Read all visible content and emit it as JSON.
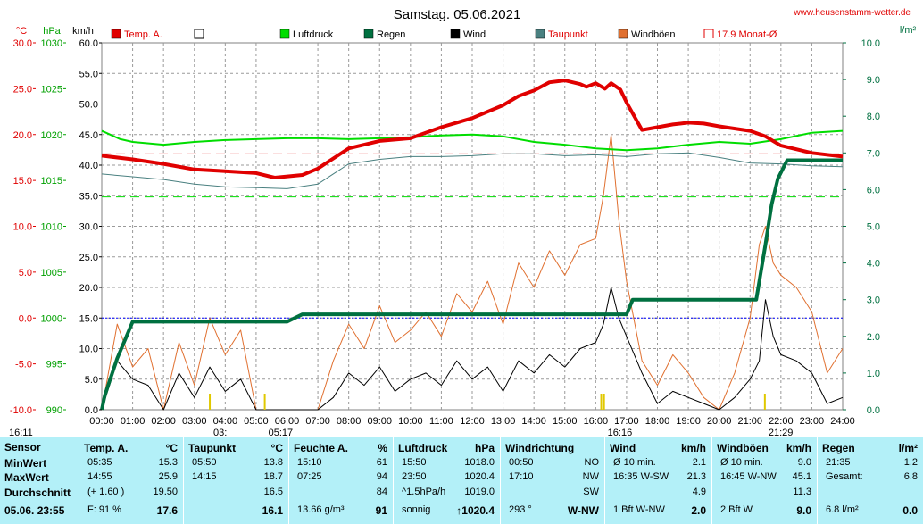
{
  "header": {
    "title": "Samstag. 05.06.2021",
    "site": "www.heusenstamm-wetter.de",
    "unit_c": "°C",
    "unit_hpa": "hPa",
    "unit_kmh": "km/h",
    "unit_lm2": "l/m²"
  },
  "legend": [
    {
      "label": "Temp. A.",
      "color": "#e00000",
      "kind": "box"
    },
    {
      "label": "",
      "color": "#ffffff",
      "kind": "outline"
    },
    {
      "label": "Luftdruck",
      "color": "#00dd00",
      "kind": "box"
    },
    {
      "label": "Regen",
      "color": "#007040",
      "kind": "box"
    },
    {
      "label": "Wind",
      "color": "#000000",
      "kind": "box"
    },
    {
      "label": "Taupunkt",
      "color": "#4a8080",
      "kind": "box"
    },
    {
      "label": "Windböen",
      "color": "#e07030",
      "kind": "box"
    },
    {
      "label": "17.9 Monat-Ø",
      "color": "#e00000",
      "kind": "bracket"
    }
  ],
  "chart_data": {
    "type": "line",
    "title": "Samstag. 05.06.2021",
    "x_ticks": [
      "00:00",
      "01:00",
      "02:00",
      "03:00",
      "04:00",
      "05:00",
      "06:00",
      "07:00",
      "08:00",
      "09:00",
      "10:00",
      "11:00",
      "12:00",
      "13:00",
      "14:00",
      "15:00",
      "16:00",
      "17:00",
      "18:00",
      "19:00",
      "20:00",
      "21:00",
      "22:00",
      "23:00",
      "24:00"
    ],
    "axes": {
      "temp_c": {
        "ticks": [
          "30.0",
          "25.0",
          "20.0",
          "15.0",
          "10.0",
          "5.0",
          "0.0",
          "-5.0",
          "-10.0"
        ],
        "range": [
          -10,
          30
        ],
        "color": "#e00000"
      },
      "pressure_hpa": {
        "ticks": [
          "1030",
          "1025",
          "1020",
          "1015",
          "1010",
          "1005",
          "1000",
          "995",
          "990"
        ],
        "range": [
          990,
          1030
        ],
        "color": "#00a000"
      },
      "wind_kmh": {
        "ticks": [
          "60.0",
          "55.0",
          "50.0",
          "45.0",
          "40.0",
          "35.0",
          "30.0",
          "25.0",
          "20.0",
          "15.0",
          "10.0",
          "5.0",
          "0.0"
        ],
        "range": [
          0,
          60
        ],
        "color": "#000000"
      },
      "rain_lm2": {
        "ticks": [
          "10.0",
          "9.0",
          "8.0",
          "7.0",
          "6.0",
          "5.0",
          "4.0",
          "3.0",
          "2.0",
          "1.0",
          "0.0"
        ],
        "range": [
          0,
          10
        ],
        "color": "#007040"
      }
    },
    "reference_lines": [
      {
        "name": "17.9 Monat-Ø",
        "axis": "temp_c",
        "value": 17.9,
        "color": "#e00000",
        "style": "dashed"
      },
      {
        "name": "pressure-reference",
        "axis": "pressure_hpa",
        "value": 1013.2,
        "color": "#00dd00",
        "style": "dashed"
      },
      {
        "name": "zero-line",
        "axis": "temp_c",
        "value": 0,
        "color": "#0000ff",
        "style": "dotted"
      }
    ],
    "markers": [
      {
        "label": "16:11",
        "time": 16.18
      },
      {
        "label": "05:17",
        "time": 5.28
      },
      {
        "label": "03:",
        "time": 3.5
      },
      {
        "label": "16:16",
        "time": 16.27
      },
      {
        "label": "21:29",
        "time": 21.48
      }
    ],
    "series": [
      {
        "name": "Temp. A.",
        "axis": "temp_c",
        "color": "#e00000",
        "width": 4,
        "x": [
          0,
          1,
          2,
          3,
          4,
          5,
          5.6,
          6.5,
          7,
          8,
          9,
          10,
          11,
          12,
          13,
          13.5,
          14,
          14.5,
          15,
          15.5,
          15.7,
          16,
          16.3,
          16.5,
          16.8,
          17,
          17.5,
          18,
          18.5,
          19,
          19.5,
          20,
          21,
          21.5,
          22,
          23,
          24
        ],
        "y": [
          17.7,
          17.3,
          16.8,
          16.2,
          16.0,
          15.8,
          15.3,
          15.6,
          16.3,
          18.5,
          19.3,
          19.6,
          20.8,
          21.8,
          23.2,
          24.2,
          24.8,
          25.7,
          25.9,
          25.5,
          25.2,
          25.6,
          25.0,
          25.6,
          24.9,
          23.5,
          20.5,
          20.8,
          21.1,
          21.3,
          21.2,
          20.9,
          20.4,
          19.8,
          18.8,
          18.0,
          17.6
        ]
      },
      {
        "name": "Luftdruck",
        "axis": "pressure_hpa",
        "color": "#00dd00",
        "width": 2,
        "x": [
          0,
          0.6,
          1,
          2,
          3,
          4,
          5,
          6,
          7,
          8,
          9,
          10,
          11,
          12,
          13,
          14,
          15,
          16,
          17,
          18,
          19,
          20,
          21,
          22,
          23,
          24
        ],
        "y": [
          1020.4,
          1019.5,
          1019.2,
          1018.9,
          1019.2,
          1019.4,
          1019.5,
          1019.6,
          1019.6,
          1019.5,
          1019.6,
          1019.7,
          1019.9,
          1020.0,
          1019.8,
          1019.2,
          1018.9,
          1018.5,
          1018.3,
          1018.5,
          1018.9,
          1019.2,
          1019.0,
          1019.5,
          1020.2,
          1020.4
        ]
      },
      {
        "name": "Regen",
        "axis": "rain_lm2",
        "color": "#007040",
        "width": 4,
        "x": [
          0,
          0.1,
          0.3,
          0.5,
          0.8,
          1.0,
          1.2,
          6.0,
          6.5,
          17.0,
          17.2,
          21.2,
          21.5,
          21.7,
          21.9,
          22.2,
          24
        ],
        "y": [
          0,
          0.4,
          0.9,
          1.4,
          2.0,
          2.4,
          2.4,
          2.4,
          2.6,
          2.6,
          3.0,
          3.0,
          4.5,
          5.6,
          6.3,
          6.8,
          6.8
        ]
      },
      {
        "name": "Taupunkt",
        "axis": "temp_c",
        "color": "#4a8080",
        "width": 1,
        "x": [
          0,
          1,
          2,
          3,
          4,
          5,
          6,
          7,
          8,
          9,
          10,
          11,
          12,
          13,
          14,
          15,
          16,
          17,
          18,
          19,
          20,
          21,
          22,
          23,
          24
        ],
        "y": [
          15.7,
          15.4,
          15.1,
          14.6,
          14.3,
          14.2,
          14.1,
          14.6,
          16.8,
          17.3,
          17.6,
          17.6,
          17.7,
          17.9,
          17.9,
          17.7,
          17.8,
          17.6,
          17.9,
          18.0,
          17.5,
          16.9,
          16.8,
          16.6,
          16.5
        ]
      },
      {
        "name": "Wind",
        "axis": "wind_kmh",
        "color": "#000000",
        "width": 1,
        "x": [
          0,
          0.5,
          1,
          1.5,
          2,
          2.5,
          3,
          3.5,
          4,
          4.5,
          5,
          5.5,
          6,
          6.5,
          7,
          7.5,
          8,
          8.5,
          9,
          9.5,
          10,
          10.5,
          11,
          11.5,
          12,
          12.5,
          13,
          13.5,
          14,
          14.5,
          15,
          15.5,
          16,
          16.25,
          16.5,
          16.75,
          17,
          17.5,
          18,
          18.5,
          19,
          19.5,
          20,
          20.5,
          21,
          21.3,
          21.5,
          21.75,
          22,
          22.5,
          23,
          23.5,
          24
        ],
        "y": [
          0,
          8,
          5,
          4,
          0,
          6,
          2,
          7,
          3,
          5,
          0,
          0,
          0,
          0,
          0,
          2,
          6,
          4,
          7,
          3,
          5,
          6,
          4,
          8,
          5,
          7,
          3,
          8,
          6,
          9,
          7,
          10,
          11,
          14,
          20,
          15,
          12,
          6,
          1,
          3,
          2,
          1,
          0,
          2,
          5,
          8,
          18,
          12,
          9,
          8,
          6,
          1,
          2
        ]
      },
      {
        "name": "Windböen",
        "axis": "wind_kmh",
        "color": "#e07030",
        "width": 1,
        "x": [
          0,
          0.5,
          1,
          1.5,
          2,
          2.5,
          3,
          3.5,
          4,
          4.5,
          5,
          5.5,
          6,
          6.5,
          7,
          7.5,
          8,
          8.5,
          9,
          9.5,
          10,
          10.5,
          11,
          11.5,
          12,
          12.5,
          13,
          13.5,
          14,
          14.5,
          15,
          15.5,
          16,
          16.25,
          16.5,
          16.75,
          17,
          17.5,
          18,
          18.5,
          19,
          19.5,
          20,
          20.5,
          21,
          21.3,
          21.5,
          21.75,
          22,
          22.5,
          23,
          23.5,
          24
        ],
        "y": [
          0,
          14,
          7,
          10,
          0,
          11,
          4,
          15,
          9,
          13,
          0,
          0,
          0,
          0,
          0,
          8,
          14,
          10,
          17,
          11,
          13,
          16,
          12,
          19,
          16,
          21,
          14,
          24,
          20,
          26,
          22,
          27,
          28,
          35,
          45,
          31,
          21,
          8,
          4,
          9,
          6,
          2,
          0,
          6,
          15,
          27,
          30,
          24,
          22,
          20,
          16,
          6,
          10
        ]
      }
    ]
  },
  "table": {
    "side_labels": [
      "Sensor",
      "MinWert",
      "MaxWert",
      "Durchschnitt",
      "05.06. 23:55"
    ],
    "columns": [
      {
        "title": "Temp. A.",
        "unit": "°C",
        "rows": [
          [
            "05:35",
            "15.3"
          ],
          [
            "14:55",
            "25.9"
          ],
          [
            "(+ 1.60 )",
            "19.50"
          ],
          [
            "F: 91 %",
            "17.6"
          ]
        ]
      },
      {
        "title": "Taupunkt",
        "unit": "°C",
        "rows": [
          [
            "05:50",
            "13.8"
          ],
          [
            "14:15",
            "18.7"
          ],
          [
            "",
            "16.5"
          ],
          [
            "",
            "16.1"
          ]
        ]
      },
      {
        "title": "Feuchte A.",
        "unit": "%",
        "rows": [
          [
            "15:10",
            "61"
          ],
          [
            "07:25",
            "94"
          ],
          [
            "",
            "84"
          ],
          [
            "13.66 g/m³",
            "91"
          ]
        ]
      },
      {
        "title": "Luftdruck",
        "unit": "hPa",
        "rows": [
          [
            "15:50",
            "1018.0"
          ],
          [
            "23:50",
            "1020.4"
          ],
          [
            "^1.5hPa/h",
            "1019.0"
          ],
          [
            "sonnig",
            "↑1020.4"
          ]
        ]
      },
      {
        "title": "Windrichtung",
        "unit": "",
        "rows": [
          [
            "00:50",
            "NO"
          ],
          [
            "17:10",
            "NW"
          ],
          [
            "",
            "SW"
          ],
          [
            "293 °",
            "W-NW"
          ]
        ]
      },
      {
        "title": "Wind",
        "unit": "km/h",
        "rows": [
          [
            "Ø 10 min.",
            "2.1"
          ],
          [
            "16:35   W-SW",
            "21.3"
          ],
          [
            "",
            "4.9"
          ],
          [
            "1 Bft W-NW",
            "2.0"
          ]
        ]
      },
      {
        "title": "Windböen",
        "unit": "km/h",
        "rows": [
          [
            "Ø 10 min.",
            "9.0"
          ],
          [
            "16:45   W-NW",
            "45.1"
          ],
          [
            "",
            "11.3"
          ],
          [
            "2 Bft W",
            "9.0"
          ]
        ]
      },
      {
        "title": "Regen",
        "unit": "l/m²",
        "rows": [
          [
            "21:35",
            "1.2"
          ],
          [
            "Gesamt:",
            "6.8"
          ],
          [
            "6.8 l/m²",
            "0.0"
          ]
        ]
      }
    ]
  }
}
